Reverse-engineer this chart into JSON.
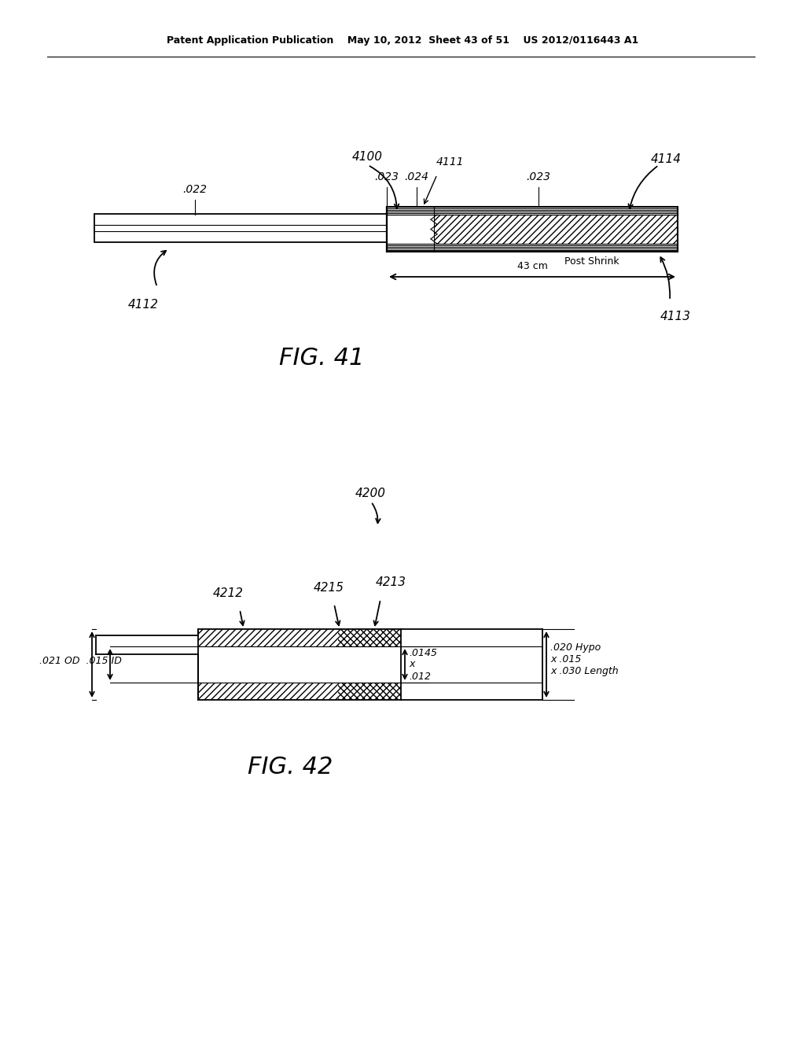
{
  "bg_color": "#ffffff",
  "header": "Patent Application Publication    May 10, 2012  Sheet 43 of 51    US 2012/0116443 A1",
  "fig41_caption": "FIG. 41",
  "fig42_caption": "FIG. 42",
  "lw_main": 1.3,
  "lw_thin": 0.8,
  "fs_label": 10,
  "fs_ref": 11,
  "fs_caption": 22
}
